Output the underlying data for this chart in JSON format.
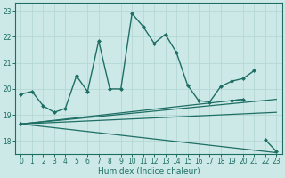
{
  "xlabel": "Humidex (Indice chaleur)",
  "xlim": [
    -0.5,
    23.5
  ],
  "ylim": [
    17.5,
    23.3
  ],
  "background_color": "#cce9e7",
  "grid_color": "#b0d5d2",
  "line_color": "#1e6e64",
  "yticks": [
    18,
    19,
    20,
    21,
    22,
    23
  ],
  "xticks": [
    0,
    1,
    2,
    3,
    4,
    5,
    6,
    7,
    8,
    9,
    10,
    11,
    12,
    13,
    14,
    15,
    16,
    17,
    18,
    19,
    20,
    21,
    22,
    23
  ],
  "xlabel_fontsize": 6.5,
  "tick_fontsize": 5.5,
  "lines": [
    {
      "x": [
        0,
        1,
        2,
        3,
        4,
        5,
        6,
        7,
        8,
        9,
        10,
        11,
        12,
        13,
        14,
        15,
        16,
        17,
        18,
        19,
        20,
        21,
        22,
        23
      ],
      "y": [
        19.8,
        19.9,
        19.35,
        19.1,
        19.25,
        20.5,
        19.9,
        21.85,
        20.0,
        20.0,
        22.9,
        22.4,
        21.75,
        22.1,
        21.4,
        20.15,
        19.55,
        19.5,
        20.1,
        20.3,
        20.4,
        20.7,
        null,
        null
      ],
      "marker": "D",
      "markersize": 2.0,
      "linewidth": 1.0,
      "has_marker": true
    },
    {
      "x": [
        0,
        1,
        2,
        3,
        4,
        5,
        6,
        7,
        8,
        9,
        10,
        11,
        12,
        13,
        14,
        15,
        16,
        17,
        18,
        19,
        20,
        21,
        22,
        23
      ],
      "y": [
        18.65,
        null,
        null,
        null,
        null,
        null,
        null,
        null,
        null,
        null,
        null,
        null,
        null,
        null,
        null,
        null,
        null,
        null,
        null,
        19.55,
        19.6,
        null,
        18.05,
        17.6
      ],
      "marker": "D",
      "markersize": 2.0,
      "linewidth": 1.0,
      "has_marker": true
    },
    {
      "x": [
        0,
        23
      ],
      "y": [
        18.65,
        19.6
      ],
      "marker": null,
      "markersize": 0,
      "linewidth": 0.9,
      "has_marker": false
    },
    {
      "x": [
        0,
        23
      ],
      "y": [
        18.65,
        19.1
      ],
      "marker": null,
      "markersize": 0,
      "linewidth": 0.9,
      "has_marker": false
    },
    {
      "x": [
        0,
        23
      ],
      "y": [
        18.65,
        17.55
      ],
      "marker": null,
      "markersize": 0,
      "linewidth": 0.9,
      "has_marker": false
    },
    {
      "x": [
        0,
        20
      ],
      "y": [
        18.65,
        19.6
      ],
      "marker": null,
      "markersize": 0,
      "linewidth": 0.9,
      "has_marker": false
    }
  ]
}
